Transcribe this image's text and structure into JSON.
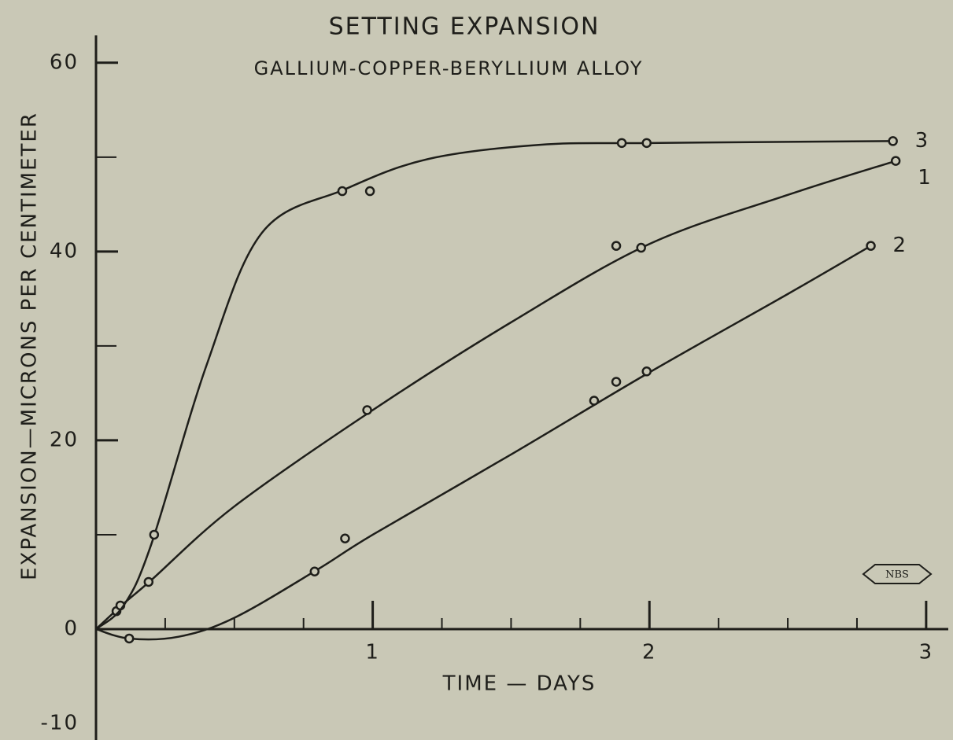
{
  "chart_data": {
    "type": "line",
    "title": "SETTING EXPANSION",
    "subtitle": "GALLIUM-COPPER-BERYLLIUM ALLOY",
    "x_label": "TIME — DAYS",
    "y_label": "EXPANSION—MICRONS PER CENTIMETER",
    "logo": "NBS",
    "xlim": [
      0,
      3.08
    ],
    "ylim": [
      -11.75,
      62.9
    ],
    "xticks": [
      1,
      2,
      3
    ],
    "xticks_minor": [
      0.25,
      0.5,
      0.75,
      1.25,
      1.5,
      1.75,
      2.25,
      2.5,
      2.75
    ],
    "yticks": [
      60,
      40,
      20,
      0,
      -10
    ],
    "yticks_minor": [
      50,
      30,
      10
    ],
    "color": "#1e1e1a",
    "series": [
      {
        "name": "1",
        "x": [
          0.074,
          0.088,
          0.19,
          0.98,
          1.88,
          1.97,
          2.89
        ],
        "values": [
          1.9,
          2.5,
          5,
          23.2,
          40.6,
          40.4,
          49.6
        ],
        "curve_x": [
          0,
          0.1,
          0.2,
          0.5,
          1,
          1.5,
          2,
          2.5,
          2.89
        ],
        "curve_values": [
          0,
          2.7,
          5.2,
          13,
          23.2,
          32.5,
          40.8,
          46,
          49.6
        ]
      },
      {
        "name": "2",
        "x": [
          0.12,
          0.79,
          0.9,
          1.8,
          1.88,
          1.99,
          2.8
        ],
        "values": [
          -1,
          6.1,
          9.6,
          24.2,
          26.2,
          27.3,
          40.6
        ],
        "curve_x": [
          0,
          0.12,
          0.3,
          0.5,
          0.8,
          1,
          1.5,
          2,
          2.5,
          2.8
        ],
        "curve_values": [
          0,
          -1,
          -0.8,
          1.2,
          6.3,
          10,
          18.5,
          27.2,
          35.5,
          40.6
        ]
      },
      {
        "name": "3",
        "x": [
          0.21,
          0.89,
          0.99,
          1.9,
          1.99,
          2.88
        ],
        "values": [
          10,
          46.4,
          46.4,
          51.5,
          51.5,
          51.7
        ],
        "curve_x": [
          0,
          0.1,
          0.2,
          0.4,
          0.6,
          0.9,
          1.2,
          1.6,
          2,
          2.88
        ],
        "curve_values": [
          0,
          2.5,
          9,
          28,
          42,
          46.6,
          49.8,
          51.3,
          51.5,
          51.7
        ]
      }
    ]
  }
}
